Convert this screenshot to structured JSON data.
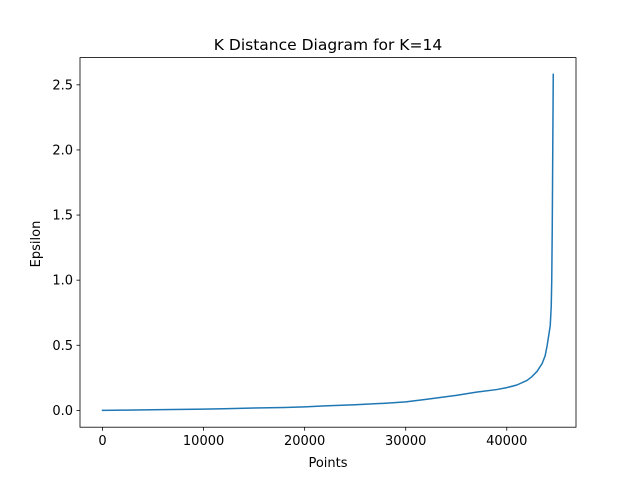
{
  "chart_data": {
    "type": "line",
    "title": "K Distance Diagram for K=14",
    "xlabel": "Points",
    "ylabel": "Epsilon",
    "xlim": [
      -2230,
      46850
    ],
    "ylim": [
      -0.129,
      2.709
    ],
    "xticks": [
      0,
      10000,
      20000,
      30000,
      40000
    ],
    "xtick_labels": [
      "0",
      "10000",
      "20000",
      "30000",
      "40000"
    ],
    "yticks": [
      0.0,
      0.5,
      1.0,
      1.5,
      2.0,
      2.5
    ],
    "ytick_labels": [
      "0.0",
      "0.5",
      "1.0",
      "1.5",
      "2.0",
      "2.5"
    ],
    "grid": false,
    "color": "#1f77b4",
    "series": [
      {
        "x": [
          0,
          2000,
          5000,
          8000,
          10000,
          12000,
          15000,
          18000,
          20000,
          22000,
          25000,
          28000,
          30000,
          32000,
          35000,
          37000,
          39000,
          40000,
          41000,
          42000,
          42500,
          43000,
          43500,
          43800,
          44000,
          44200,
          44300,
          44400,
          44450,
          44500,
          44550,
          44600
        ],
        "y": [
          0.0,
          0.002,
          0.005,
          0.008,
          0.01,
          0.013,
          0.018,
          0.022,
          0.027,
          0.035,
          0.043,
          0.055,
          0.065,
          0.085,
          0.115,
          0.14,
          0.16,
          0.175,
          0.195,
          0.23,
          0.26,
          0.3,
          0.36,
          0.42,
          0.5,
          0.6,
          0.65,
          0.8,
          1.0,
          1.4,
          2.0,
          2.58
        ]
      }
    ]
  }
}
